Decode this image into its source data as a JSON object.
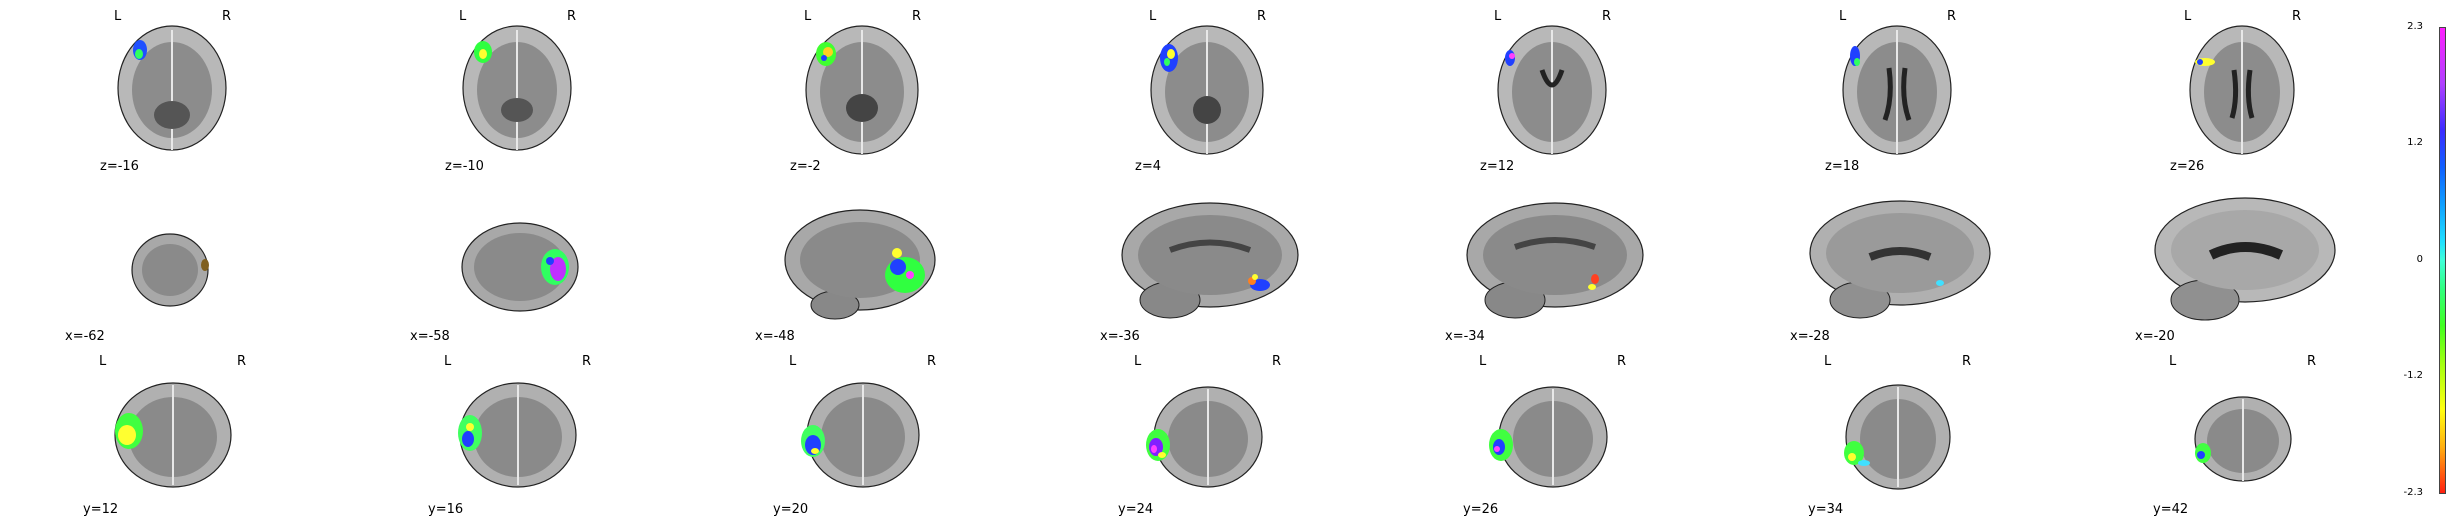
{
  "orientation_labels": {
    "left": "L",
    "right": "R"
  },
  "rows": [
    {
      "view": "axial",
      "panels": [
        "z=-16",
        "z=-10",
        "z=-2",
        "z=4",
        "z=12",
        "z=18",
        "z=26"
      ]
    },
    {
      "view": "sagittal",
      "panels": [
        "x=-62",
        "x=-58",
        "x=-48",
        "x=-36",
        "x=-34",
        "x=-28",
        "x=-20"
      ]
    },
    {
      "view": "coronal",
      "panels": [
        "y=12",
        "y=16",
        "y=20",
        "y=24",
        "y=26",
        "y=34",
        "y=42"
      ]
    }
  ],
  "colorbar": {
    "ticks": [
      "2.3",
      "1.2",
      "0",
      "-1.2",
      "-2.3"
    ],
    "colors": [
      "#ff20ff",
      "#3c2cff",
      "#20e0ff",
      "#40ff20",
      "#ffff10",
      "#ff2010"
    ]
  }
}
